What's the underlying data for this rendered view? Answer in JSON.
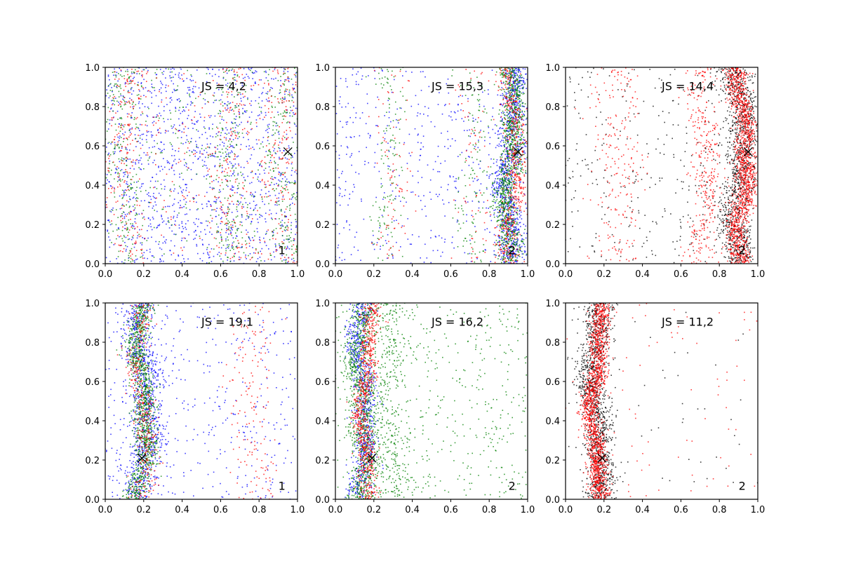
{
  "figure": {
    "background": "#ffffff"
  },
  "chart_data": [
    {
      "type": "scatter",
      "annotation": "JS = 4,2",
      "panel_label": "1",
      "xlim": [
        0,
        1
      ],
      "ylim": [
        0,
        1
      ],
      "ticks": [
        "0.0",
        "0.2",
        "0.4",
        "0.6",
        "0.8",
        "1.0"
      ],
      "marker": {
        "x": 0.95,
        "y": 0.57,
        "symbol": "x",
        "color": "#000000"
      },
      "point_colors": [
        "#0000ff",
        "#008000",
        "#ff0000"
      ],
      "density_bands": [
        {
          "color": "#0000ff",
          "n": 1300,
          "kind": "uniform"
        },
        {
          "color": "#008000",
          "n": 600,
          "kind": "bands",
          "centers": [
            0.1,
            0.65,
            0.93
          ],
          "width": 0.05
        },
        {
          "color": "#ff0000",
          "n": 450,
          "kind": "bands",
          "centers": [
            0.1,
            0.65,
            0.93
          ],
          "width": 0.05
        },
        {
          "color": "#008000",
          "n": 250,
          "kind": "uniform"
        },
        {
          "color": "#ff0000",
          "n": 250,
          "kind": "uniform"
        }
      ]
    },
    {
      "type": "scatter",
      "annotation": "JS = 15,3",
      "panel_label": "2",
      "xlim": [
        0,
        1
      ],
      "ylim": [
        0,
        1
      ],
      "ticks": [
        "0.0",
        "0.2",
        "0.4",
        "0.6",
        "0.8",
        "1.0"
      ],
      "marker": {
        "x": 0.95,
        "y": 0.57,
        "symbol": "x",
        "color": "#000000"
      },
      "point_colors": [
        "#0000ff",
        "#008000",
        "#ff0000"
      ],
      "density_bands": [
        {
          "color": "#0000ff",
          "n": 500,
          "kind": "uniform"
        },
        {
          "color": "#0000ff",
          "n": 900,
          "kind": "bands",
          "centers": [
            0.91
          ],
          "width": 0.035
        },
        {
          "color": "#008000",
          "n": 1100,
          "kind": "bands",
          "centers": [
            0.91
          ],
          "width": 0.03
        },
        {
          "color": "#008000",
          "n": 250,
          "kind": "bands",
          "centers": [
            0.72,
            0.28
          ],
          "width": 0.04
        },
        {
          "color": "#ff0000",
          "n": 500,
          "kind": "bands",
          "centers": [
            0.92
          ],
          "width": 0.03
        },
        {
          "color": "#ff0000",
          "n": 150,
          "kind": "bands",
          "centers": [
            0.72,
            0.3
          ],
          "width": 0.05
        }
      ]
    },
    {
      "type": "scatter",
      "annotation": "JS = 14,4",
      "panel_label": "2",
      "xlim": [
        0,
        1
      ],
      "ylim": [
        0,
        1
      ],
      "ticks": [
        "0.0",
        "0.2",
        "0.4",
        "0.6",
        "0.8",
        "1.0"
      ],
      "marker": {
        "x": 0.95,
        "y": 0.57,
        "symbol": "x",
        "color": "#000000"
      },
      "point_colors": [
        "#000000",
        "#ff0000"
      ],
      "density_bands": [
        {
          "color": "#000000",
          "n": 350,
          "kind": "uniform"
        },
        {
          "color": "#000000",
          "n": 1100,
          "kind": "bands",
          "centers": [
            0.9
          ],
          "width": 0.045
        },
        {
          "color": "#ff0000",
          "n": 1400,
          "kind": "bands",
          "centers": [
            0.92
          ],
          "width": 0.028
        },
        {
          "color": "#ff0000",
          "n": 350,
          "kind": "bands",
          "centers": [
            0.72
          ],
          "width": 0.04
        },
        {
          "color": "#ff0000",
          "n": 220,
          "kind": "bands",
          "centers": [
            0.28
          ],
          "width": 0.07
        }
      ]
    },
    {
      "type": "scatter",
      "annotation": "JS = 19,1",
      "panel_label": "1",
      "xlim": [
        0,
        1
      ],
      "ylim": [
        0,
        1
      ],
      "ticks": [
        "0.0",
        "0.2",
        "0.4",
        "0.6",
        "0.8",
        "1.0"
      ],
      "marker": {
        "x": 0.19,
        "y": 0.21,
        "symbol": "x",
        "color": "#000000"
      },
      "point_colors": [
        "#0000ff",
        "#008000",
        "#ff0000"
      ],
      "density_bands": [
        {
          "color": "#0000ff",
          "n": 450,
          "kind": "uniform"
        },
        {
          "color": "#0000ff",
          "n": 900,
          "kind": "bands",
          "centers": [
            0.2
          ],
          "width": 0.045
        },
        {
          "color": "#008000",
          "n": 1100,
          "kind": "bands",
          "centers": [
            0.19
          ],
          "width": 0.03
        },
        {
          "color": "#ff0000",
          "n": 350,
          "kind": "bands",
          "centers": [
            0.19
          ],
          "width": 0.03
        },
        {
          "color": "#ff0000",
          "n": 150,
          "kind": "bands",
          "centers": [
            0.72,
            0.8
          ],
          "width": 0.04
        }
      ]
    },
    {
      "type": "scatter",
      "annotation": "JS = 16,2",
      "panel_label": "2",
      "xlim": [
        0,
        1
      ],
      "ylim": [
        0,
        1
      ],
      "ticks": [
        "0.0",
        "0.2",
        "0.4",
        "0.6",
        "0.8",
        "1.0"
      ],
      "marker": {
        "x": 0.19,
        "y": 0.21,
        "symbol": "x",
        "color": "#000000"
      },
      "point_colors": [
        "#0000ff",
        "#008000",
        "#ff0000"
      ],
      "density_bands": [
        {
          "color": "#0000ff",
          "n": 800,
          "kind": "bands",
          "centers": [
            0.14
          ],
          "width": 0.03
        },
        {
          "color": "#008000",
          "n": 900,
          "kind": "bands",
          "centers": [
            0.14
          ],
          "width": 0.035
        },
        {
          "color": "#008000",
          "n": 550,
          "kind": "uniform"
        },
        {
          "color": "#008000",
          "n": 350,
          "kind": "bands",
          "centers": [
            0.28
          ],
          "width": 0.05
        },
        {
          "color": "#ff0000",
          "n": 700,
          "kind": "bands",
          "centers": [
            0.16
          ],
          "width": 0.025
        }
      ]
    },
    {
      "type": "scatter",
      "annotation": "JS = 11,2",
      "panel_label": "2",
      "xlim": [
        0,
        1
      ],
      "ylim": [
        0,
        1
      ],
      "ticks": [
        "0.0",
        "0.2",
        "0.4",
        "0.6",
        "0.8",
        "1.0"
      ],
      "marker": {
        "x": 0.19,
        "y": 0.21,
        "symbol": "x",
        "color": "#000000"
      },
      "point_colors": [
        "#000000",
        "#ff0000"
      ],
      "density_bands": [
        {
          "color": "#000000",
          "n": 1200,
          "kind": "bands",
          "centers": [
            0.16
          ],
          "width": 0.04
        },
        {
          "color": "#000000",
          "n": 60,
          "kind": "uniform"
        },
        {
          "color": "#ff0000",
          "n": 1500,
          "kind": "bands",
          "centers": [
            0.16
          ],
          "width": 0.025
        },
        {
          "color": "#ff0000",
          "n": 80,
          "kind": "uniform"
        }
      ]
    }
  ]
}
